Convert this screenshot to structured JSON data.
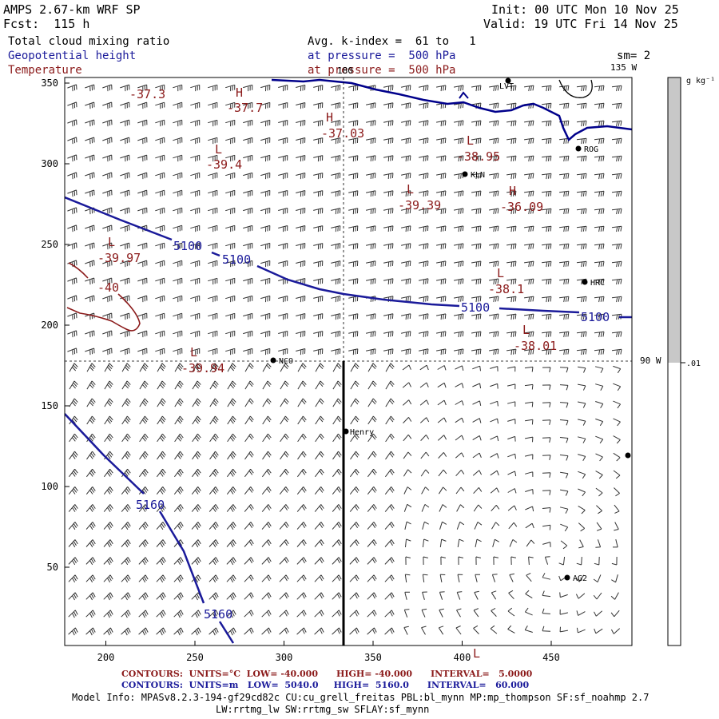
{
  "header": {
    "model": "AMPS 2.67-km WRF SP",
    "forecast": "Fcst:  115 h",
    "init": "Init: 00 UTC Mon 10 Nov 25",
    "valid": "Valid: 19 UTC Fri 14 Nov 25",
    "field_cloud": "Total cloud mixing ratio",
    "field_geo": "Geopotential height",
    "field_temp": "Temperature",
    "avg_k": "Avg. k-index =  61 to   1",
    "pressure1": "at pressure =  500 hPa",
    "pressure2": "at pressure =  500 hPa",
    "smoothing": "sm= 2"
  },
  "map": {
    "x_ticks": [
      "200",
      "250",
      "300",
      "350",
      "400",
      "450"
    ],
    "y_ticks": [
      "350",
      "300",
      "250",
      "200",
      "150",
      "100",
      "50"
    ],
    "lon_labels": {
      "top": "180",
      "right_top": "135 W",
      "right_mid": "90 W"
    },
    "stations": [
      {
        "name": "LVT"
      },
      {
        "name": "ROG"
      },
      {
        "name": "KLN"
      },
      {
        "name": "HRC"
      },
      {
        "name": "NCO"
      },
      {
        "name": "Henry"
      },
      {
        "name": "AG2"
      }
    ],
    "height_contour_labels": [
      "5100",
      "5100",
      "5100",
      "5100",
      "5160",
      "5160"
    ],
    "pressure_centers": [
      {
        "type": "H",
        "value": "-37.7"
      },
      {
        "type": "H",
        "value": "-37.03"
      },
      {
        "type": "H",
        "value": "-36.09"
      },
      {
        "type": "L",
        "value": "-37.3"
      },
      {
        "type": "L",
        "value": "-39.4"
      },
      {
        "type": "L",
        "value": "-38.95"
      },
      {
        "type": "L",
        "value": "-39.39"
      },
      {
        "type": "L",
        "value": "-39.97"
      },
      {
        "type": "L",
        "value": "-38.1"
      },
      {
        "type": "L",
        "value": "-38.01"
      },
      {
        "type": "L",
        "value": "-39.94"
      },
      {
        "type": "L",
        "value": ""
      }
    ],
    "temp_contour_label": "-40",
    "colors": {
      "height": "#1a1a9a",
      "temperature": "#8b1a1a",
      "coast": "#00008b",
      "colorbar_fill": "#c8c8c8"
    }
  },
  "colorbar": {
    "unit": "g kg⁻¹",
    "tick": ".01"
  },
  "footer": {
    "temp_contours": "CONTOURS:  UNITS=°C  LOW= -40.000      HIGH= -40.000      INTERVAL=   5.0000",
    "geo_contours": "CONTOURS:  UNITS=m   LOW=  5040.0     HIGH=  5160.0      INTERVAL=   60.000",
    "model_info": "Model Info: MPASv8.2.3-194-gf29cd82c CU:cu_grell_freitas PBL:bl_mynn MP:mp_thompson SF:sf_noahmp 2.7",
    "model_info2": "LW:rrtmg_lw SW:rrtmg_sw SFLAY:sf_mynn"
  }
}
